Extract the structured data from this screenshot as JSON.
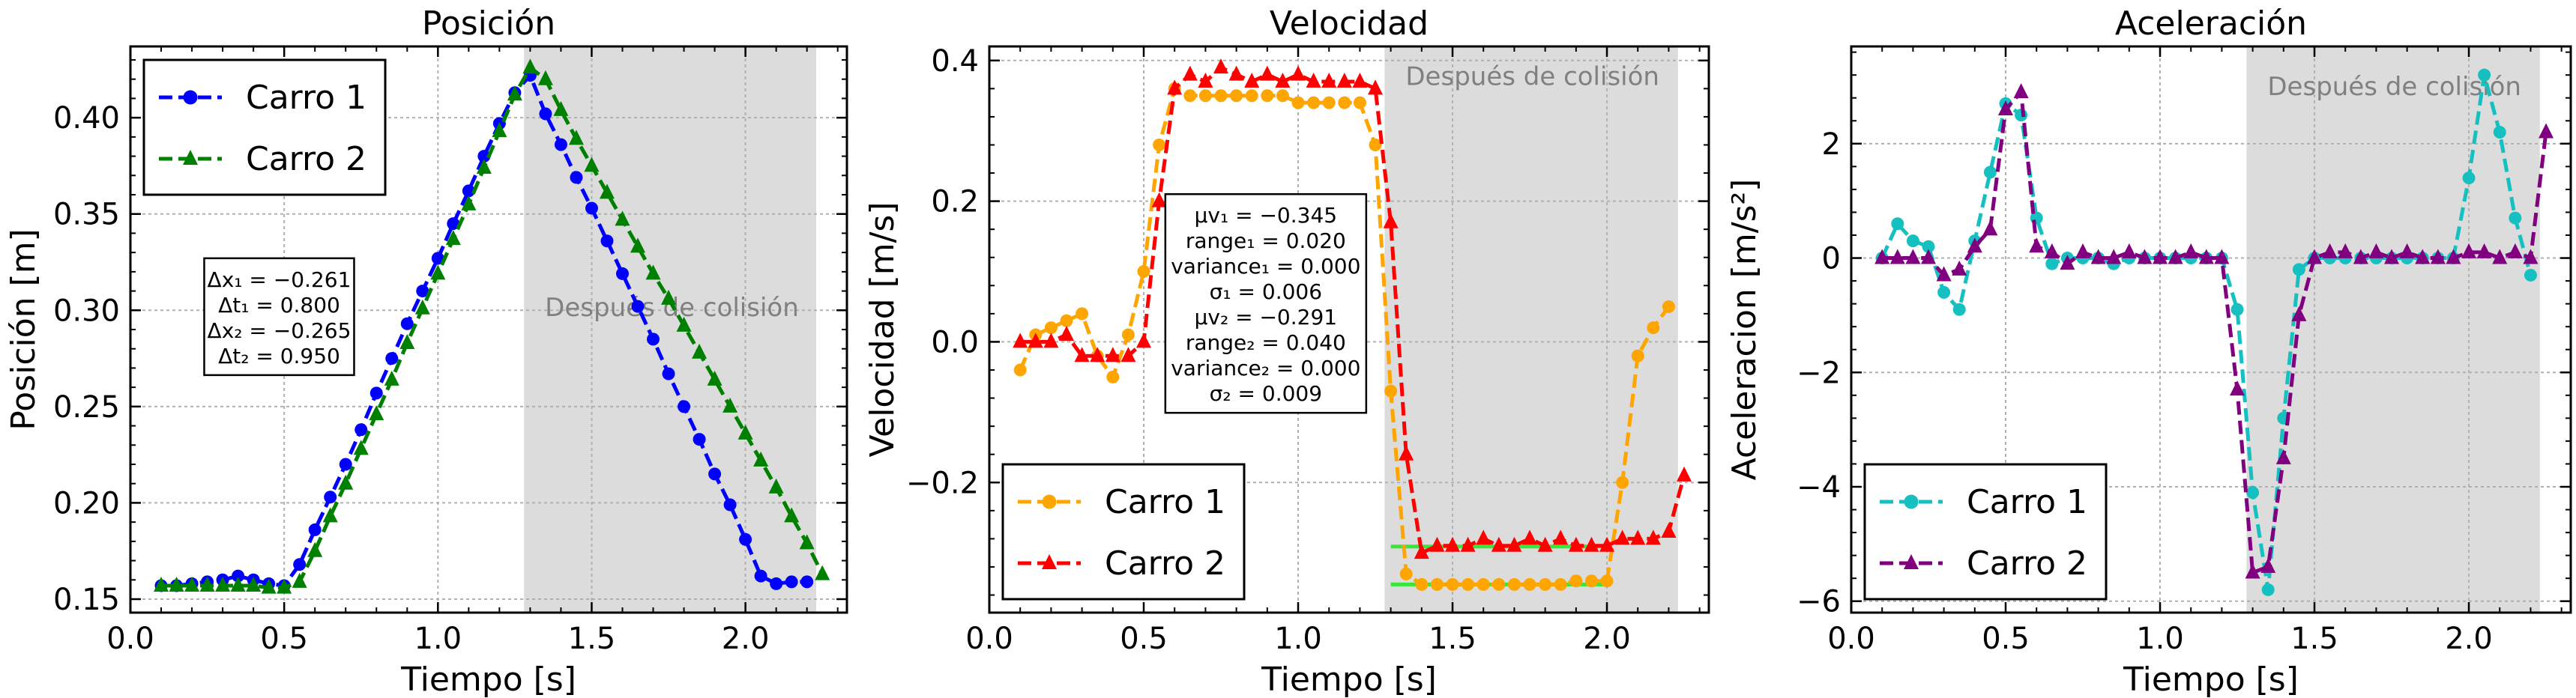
{
  "chart_data": [
    {
      "type": "line",
      "title": "Posición",
      "xlabel": "Tiempo [s]",
      "ylabel": "Posición [m]",
      "xlim": [
        0.0,
        2.33
      ],
      "ylim": [
        0.143,
        0.437
      ],
      "xticks": [
        "0.0",
        "0.5",
        "1.0",
        "1.5",
        "2.0"
      ],
      "xtick_values": [
        0.0,
        0.5,
        1.0,
        1.5,
        2.0
      ],
      "yticks": [
        "0.15",
        "0.20",
        "0.25",
        "0.30",
        "0.35",
        "0.40"
      ],
      "ytick_values": [
        0.15,
        0.2,
        0.25,
        0.3,
        0.35,
        0.4
      ],
      "grid": true,
      "legend_position": "top-left",
      "shaded_region": {
        "x_start": 1.28,
        "x_end": 2.23,
        "label": "Después de colisión"
      },
      "annotation_lines": [
        "Δx₁ = −0.261",
        "Δt₁ = 0.800",
        "Δx₂ = −0.265",
        "Δt₂ = 0.950"
      ],
      "series": [
        {
          "name": "Carro 1",
          "color": "#0000ff",
          "marker": "circle",
          "x": [
            0.1,
            0.15,
            0.2,
            0.25,
            0.3,
            0.35,
            0.4,
            0.45,
            0.5,
            0.55,
            0.6,
            0.65,
            0.7,
            0.75,
            0.8,
            0.85,
            0.9,
            0.95,
            1.0,
            1.05,
            1.1,
            1.15,
            1.2,
            1.25,
            1.3,
            1.35,
            1.4,
            1.45,
            1.5,
            1.55,
            1.6,
            1.65,
            1.7,
            1.75,
            1.8,
            1.85,
            1.9,
            1.95,
            2.0,
            2.05,
            2.1,
            2.15,
            2.2
          ],
          "y": [
            0.157,
            0.157,
            0.158,
            0.159,
            0.16,
            0.162,
            0.16,
            0.158,
            0.157,
            0.168,
            0.186,
            0.203,
            0.22,
            0.238,
            0.257,
            0.275,
            0.293,
            0.31,
            0.327,
            0.345,
            0.362,
            0.38,
            0.397,
            0.413,
            0.422,
            0.402,
            0.386,
            0.369,
            0.353,
            0.336,
            0.319,
            0.302,
            0.285,
            0.267,
            0.25,
            0.233,
            0.215,
            0.199,
            0.181,
            0.162,
            0.158,
            0.159,
            0.159
          ]
        },
        {
          "name": "Carro 2",
          "color": "#008000",
          "marker": "triangle",
          "x": [
            0.1,
            0.15,
            0.2,
            0.25,
            0.3,
            0.35,
            0.4,
            0.45,
            0.5,
            0.55,
            0.6,
            0.65,
            0.7,
            0.75,
            0.8,
            0.85,
            0.9,
            0.95,
            1.0,
            1.05,
            1.1,
            1.15,
            1.2,
            1.25,
            1.3,
            1.35,
            1.4,
            1.45,
            1.5,
            1.55,
            1.6,
            1.65,
            1.7,
            1.75,
            1.8,
            1.85,
            1.9,
            1.95,
            2.0,
            2.05,
            2.1,
            2.15,
            2.2,
            2.25
          ],
          "y": [
            0.157,
            0.157,
            0.157,
            0.157,
            0.157,
            0.157,
            0.157,
            0.156,
            0.156,
            0.159,
            0.175,
            0.193,
            0.21,
            0.228,
            0.246,
            0.264,
            0.283,
            0.301,
            0.319,
            0.337,
            0.355,
            0.374,
            0.393,
            0.412,
            0.426,
            0.42,
            0.404,
            0.389,
            0.375,
            0.361,
            0.347,
            0.333,
            0.319,
            0.306,
            0.292,
            0.278,
            0.264,
            0.25,
            0.236,
            0.222,
            0.208,
            0.193,
            0.179,
            0.163
          ]
        }
      ]
    },
    {
      "type": "line",
      "title": "Velocidad",
      "xlabel": "Tiempo [s]",
      "ylabel": "Velocidad [m/s]",
      "xlim": [
        0.0,
        2.33
      ],
      "ylim": [
        -0.385,
        0.42
      ],
      "xticks": [
        "0.0",
        "0.5",
        "1.0",
        "1.5",
        "2.0"
      ],
      "xtick_values": [
        0.0,
        0.5,
        1.0,
        1.5,
        2.0
      ],
      "yticks": [
        "−0.2",
        "0.0",
        "0.2",
        "0.4"
      ],
      "ytick_values": [
        -0.2,
        0.0,
        0.2,
        0.4
      ],
      "grid": true,
      "legend_position": "bottom-left",
      "shaded_region": {
        "x_start": 1.28,
        "x_end": 2.23,
        "label": "Después de colisión"
      },
      "annotation_lines": [
        "μv₁ = −0.345",
        "range₁ = 0.020",
        "variance₁ = 0.000",
        "σ₁ = 0.006",
        "μv₂ = −0.291",
        "range₂ = 0.040",
        "variance₂ = 0.000",
        "σ₂ = 0.009"
      ],
      "mean_lines": [
        {
          "x_start": 1.3,
          "x_end": 2.0,
          "y": -0.345,
          "color": "#39e639"
        },
        {
          "x_start": 1.3,
          "x_end": 2.0,
          "y": -0.291,
          "color": "#39e639"
        }
      ],
      "series": [
        {
          "name": "Carro 1",
          "color": "#ffa500",
          "marker": "circle",
          "x": [
            0.1,
            0.15,
            0.2,
            0.25,
            0.3,
            0.35,
            0.4,
            0.45,
            0.5,
            0.55,
            0.6,
            0.65,
            0.7,
            0.75,
            0.8,
            0.85,
            0.9,
            0.95,
            1.0,
            1.05,
            1.1,
            1.15,
            1.2,
            1.25,
            1.3,
            1.35,
            1.4,
            1.45,
            1.5,
            1.55,
            1.6,
            1.65,
            1.7,
            1.75,
            1.8,
            1.85,
            1.9,
            1.95,
            2.0,
            2.05,
            2.1,
            2.15,
            2.2
          ],
          "y": [
            -0.04,
            0.01,
            0.02,
            0.03,
            0.04,
            -0.02,
            -0.05,
            0.01,
            0.1,
            0.28,
            0.36,
            0.35,
            0.35,
            0.35,
            0.35,
            0.35,
            0.35,
            0.35,
            0.34,
            0.34,
            0.34,
            0.34,
            0.34,
            0.28,
            -0.07,
            -0.33,
            -0.345,
            -0.345,
            -0.345,
            -0.345,
            -0.345,
            -0.345,
            -0.345,
            -0.345,
            -0.345,
            -0.345,
            -0.34,
            -0.34,
            -0.34,
            -0.2,
            -0.02,
            0.02,
            0.05
          ]
        },
        {
          "name": "Carro 2",
          "color": "#ff0000",
          "marker": "triangle",
          "x": [
            0.1,
            0.15,
            0.2,
            0.25,
            0.3,
            0.35,
            0.4,
            0.45,
            0.5,
            0.55,
            0.6,
            0.65,
            0.7,
            0.75,
            0.8,
            0.85,
            0.9,
            0.95,
            1.0,
            1.05,
            1.1,
            1.15,
            1.2,
            1.25,
            1.3,
            1.35,
            1.4,
            1.45,
            1.5,
            1.55,
            1.6,
            1.65,
            1.7,
            1.75,
            1.8,
            1.85,
            1.9,
            1.95,
            2.0,
            2.05,
            2.1,
            2.15,
            2.2,
            2.25
          ],
          "y": [
            0.0,
            0.0,
            0.0,
            0.01,
            -0.02,
            -0.02,
            -0.02,
            -0.02,
            0.0,
            0.2,
            0.36,
            0.38,
            0.37,
            0.39,
            0.38,
            0.37,
            0.38,
            0.37,
            0.38,
            0.37,
            0.37,
            0.37,
            0.37,
            0.36,
            0.17,
            -0.16,
            -0.3,
            -0.29,
            -0.29,
            -0.29,
            -0.28,
            -0.29,
            -0.29,
            -0.28,
            -0.29,
            -0.28,
            -0.29,
            -0.29,
            -0.29,
            -0.28,
            -0.28,
            -0.28,
            -0.27,
            -0.19
          ]
        }
      ]
    },
    {
      "type": "line",
      "title": "Aceleración",
      "xlabel": "Tiempo [s]",
      "ylabel": "Aceleracion [m/s²]",
      "xlim": [
        0.0,
        2.33
      ],
      "ylim": [
        -6.2,
        3.7
      ],
      "xticks": [
        "0.0",
        "0.5",
        "1.0",
        "1.5",
        "2.0"
      ],
      "xtick_values": [
        0.0,
        0.5,
        1.0,
        1.5,
        2.0
      ],
      "yticks": [
        "−6",
        "−4",
        "−2",
        "0",
        "2"
      ],
      "ytick_values": [
        -6,
        -4,
        -2,
        0,
        2
      ],
      "grid": true,
      "legend_position": "bottom-left",
      "shaded_region": {
        "x_start": 1.28,
        "x_end": 2.23,
        "label": "Después de colisión"
      },
      "series": [
        {
          "name": "Carro 1",
          "color": "#17c0c0",
          "marker": "circle",
          "x": [
            0.1,
            0.15,
            0.2,
            0.25,
            0.3,
            0.35,
            0.4,
            0.45,
            0.5,
            0.55,
            0.6,
            0.65,
            0.7,
            0.75,
            0.8,
            0.85,
            0.9,
            0.95,
            1.0,
            1.05,
            1.1,
            1.15,
            1.2,
            1.25,
            1.3,
            1.35,
            1.4,
            1.45,
            1.5,
            1.55,
            1.6,
            1.65,
            1.7,
            1.75,
            1.8,
            1.85,
            1.9,
            1.95,
            2.0,
            2.05,
            2.1,
            2.15,
            2.2
          ],
          "y": [
            0.0,
            0.6,
            0.3,
            0.2,
            -0.6,
            -0.9,
            0.3,
            1.5,
            2.7,
            2.5,
            0.7,
            -0.1,
            0.0,
            0.0,
            0.0,
            -0.1,
            0.0,
            0.0,
            0.0,
            0.0,
            0.0,
            0.0,
            0.0,
            -0.9,
            -4.1,
            -5.8,
            -2.8,
            -0.2,
            0.0,
            0.0,
            0.0,
            0.0,
            0.0,
            0.0,
            0.0,
            0.0,
            0.0,
            0.0,
            1.4,
            3.2,
            2.2,
            0.7,
            -0.3
          ]
        },
        {
          "name": "Carro 2",
          "color": "#800080",
          "marker": "triangle",
          "x": [
            0.1,
            0.15,
            0.2,
            0.25,
            0.3,
            0.35,
            0.4,
            0.45,
            0.5,
            0.55,
            0.6,
            0.65,
            0.7,
            0.75,
            0.8,
            0.85,
            0.9,
            0.95,
            1.0,
            1.05,
            1.1,
            1.15,
            1.2,
            1.25,
            1.3,
            1.35,
            1.4,
            1.45,
            1.5,
            1.55,
            1.6,
            1.65,
            1.7,
            1.75,
            1.8,
            1.85,
            1.9,
            1.95,
            2.0,
            2.05,
            2.1,
            2.15,
            2.2,
            2.25
          ],
          "y": [
            0.0,
            0.0,
            0.0,
            0.0,
            -0.3,
            -0.2,
            0.2,
            0.5,
            2.6,
            2.9,
            0.2,
            0.1,
            -0.1,
            0.1,
            0.0,
            0.0,
            0.1,
            0.0,
            0.0,
            0.0,
            0.1,
            0.0,
            0.0,
            -2.3,
            -5.5,
            -5.4,
            -3.5,
            -1.0,
            0.0,
            0.1,
            0.1,
            0.0,
            0.1,
            0.0,
            0.1,
            0.0,
            0.0,
            0.0,
            0.1,
            0.1,
            0.0,
            0.1,
            0.0,
            2.2
          ]
        }
      ]
    }
  ]
}
